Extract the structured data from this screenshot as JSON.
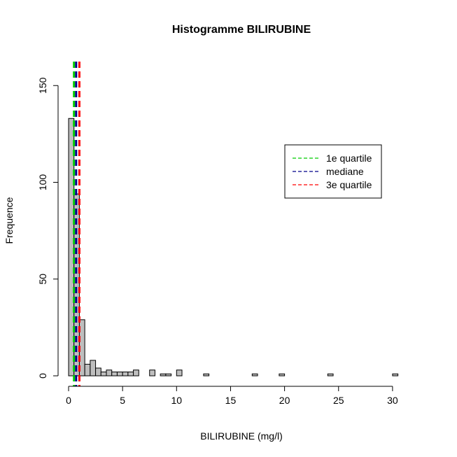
{
  "chart_data": {
    "type": "bar",
    "title": "Histogramme  BILIRUBINE",
    "xlabel": "BILIRUBINE (mg/l)",
    "ylabel": "Frequence",
    "xlim": [
      0,
      32
    ],
    "ylim": [
      0,
      160
    ],
    "x_ticks": [
      0,
      5,
      10,
      15,
      20,
      25,
      30
    ],
    "y_ticks": [
      0,
      50,
      100,
      150
    ],
    "bin_width": 0.5,
    "bins": [
      {
        "x0": 0.0,
        "x1": 0.5,
        "count": 133
      },
      {
        "x0": 0.5,
        "x1": 1.0,
        "count": 94
      },
      {
        "x0": 1.0,
        "x1": 1.5,
        "count": 29
      },
      {
        "x0": 1.5,
        "x1": 2.0,
        "count": 6
      },
      {
        "x0": 2.0,
        "x1": 2.5,
        "count": 8
      },
      {
        "x0": 2.5,
        "x1": 3.0,
        "count": 4
      },
      {
        "x0": 3.0,
        "x1": 3.5,
        "count": 2
      },
      {
        "x0": 3.5,
        "x1": 4.0,
        "count": 3
      },
      {
        "x0": 4.0,
        "x1": 4.5,
        "count": 2
      },
      {
        "x0": 4.5,
        "x1": 5.0,
        "count": 2
      },
      {
        "x0": 5.0,
        "x1": 5.5,
        "count": 2
      },
      {
        "x0": 5.5,
        "x1": 6.0,
        "count": 2
      },
      {
        "x0": 6.0,
        "x1": 6.5,
        "count": 3
      },
      {
        "x0": 7.5,
        "x1": 8.0,
        "count": 3
      },
      {
        "x0": 8.5,
        "x1": 9.0,
        "count": 1
      },
      {
        "x0": 9.0,
        "x1": 9.5,
        "count": 1
      },
      {
        "x0": 10.0,
        "x1": 10.5,
        "count": 3
      },
      {
        "x0": 12.5,
        "x1": 13.0,
        "count": 1
      },
      {
        "x0": 17.0,
        "x1": 17.5,
        "count": 1
      },
      {
        "x0": 19.5,
        "x1": 20.0,
        "count": 1
      },
      {
        "x0": 24.0,
        "x1": 24.5,
        "count": 1
      },
      {
        "x0": 30.0,
        "x1": 30.5,
        "count": 1
      }
    ],
    "reference_lines": [
      {
        "name": "1e quartile",
        "x": 0.5,
        "color": "#00cc00",
        "style": "dashed"
      },
      {
        "name": "mediane",
        "x": 0.7,
        "color": "#00008b",
        "style": "dashed"
      },
      {
        "name": "3e quartile",
        "x": 1.0,
        "color": "#ff0000",
        "style": "dashed"
      }
    ],
    "legend": {
      "position": "right",
      "entries": [
        "1e quartile",
        "mediane",
        "3e quartile"
      ]
    },
    "grid": false
  }
}
